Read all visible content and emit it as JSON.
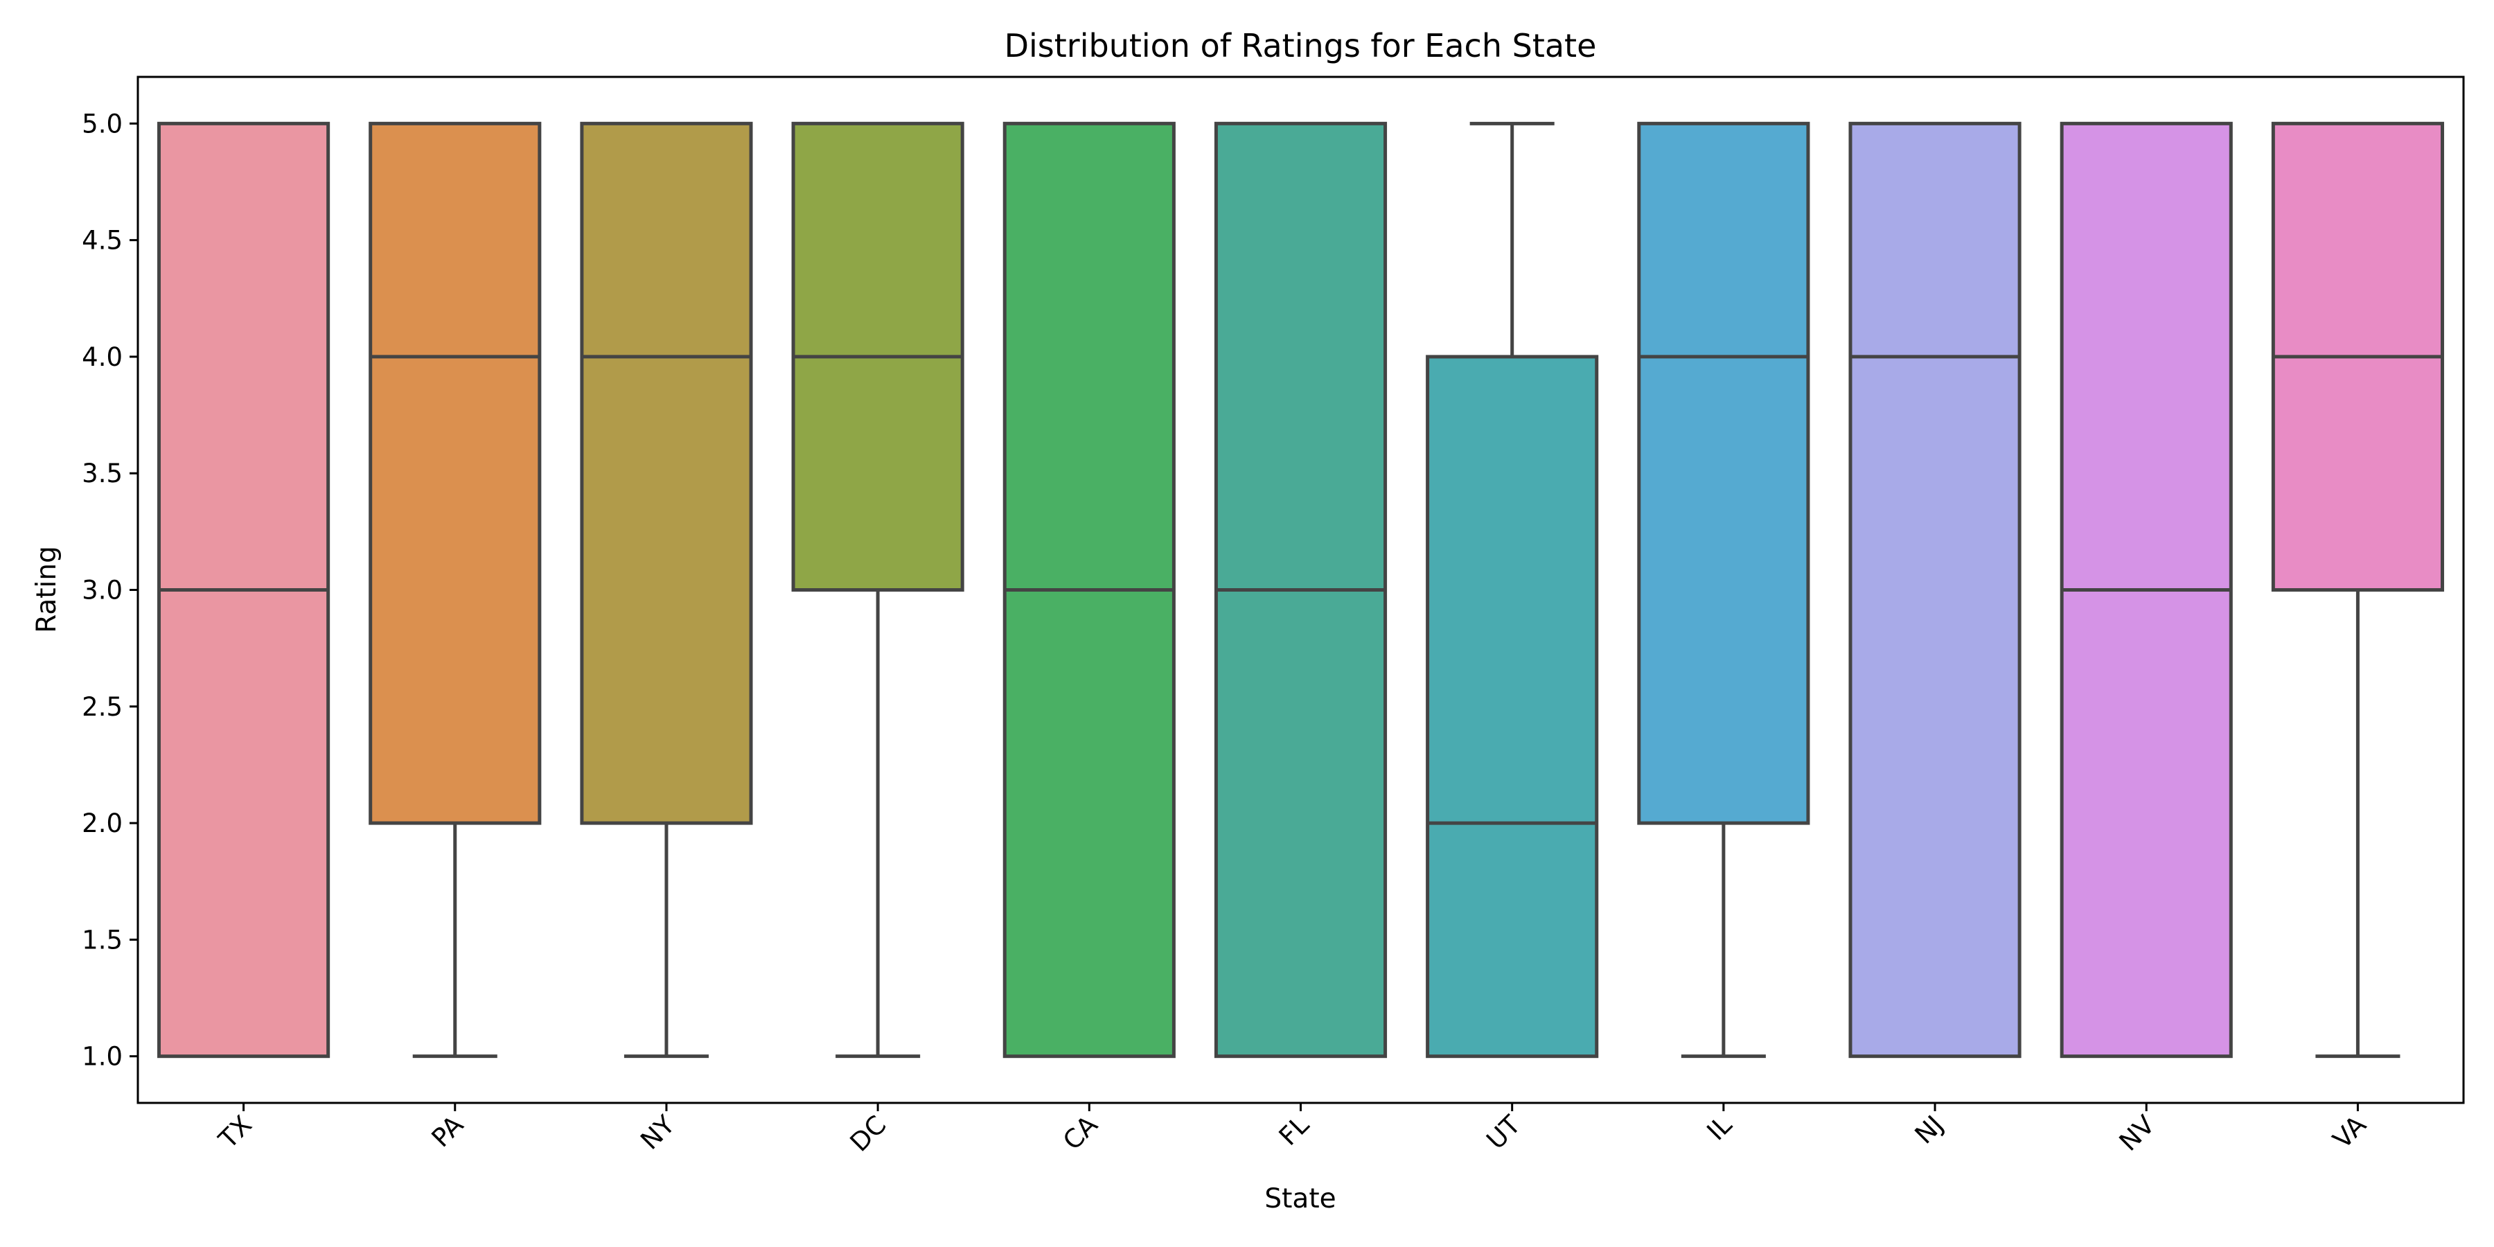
{
  "chart_data": {
    "type": "box",
    "title": "Distribution of Ratings for Each State",
    "xlabel": "State",
    "ylabel": "Rating",
    "ylim": [
      0.8,
      5.2
    ],
    "yticks": [
      "1.0",
      "1.5",
      "2.0",
      "2.5",
      "3.0",
      "3.5",
      "4.0",
      "4.5",
      "5.0"
    ],
    "grid": false,
    "legend": "none",
    "x_tick_rotation": 45,
    "categories": [
      "TX",
      "PA",
      "NY",
      "DC",
      "CA",
      "FL",
      "UT",
      "IL",
      "NJ",
      "NV",
      "VA"
    ],
    "boxes": [
      {
        "category": "TX",
        "min": 1.0,
        "q1": 1.0,
        "median": 3.0,
        "q3": 5.0,
        "max": 5.0,
        "color": "#ea96a2"
      },
      {
        "category": "PA",
        "min": 1.0,
        "q1": 2.0,
        "median": 4.0,
        "q3": 5.0,
        "max": 5.0,
        "color": "#db904f"
      },
      {
        "category": "NY",
        "min": 1.0,
        "q1": 2.0,
        "median": 4.0,
        "q3": 5.0,
        "max": 5.0,
        "color": "#b19b4a"
      },
      {
        "category": "DC",
        "min": 1.0,
        "q1": 3.0,
        "median": 4.0,
        "q3": 5.0,
        "max": 5.0,
        "color": "#8fa647"
      },
      {
        "category": "CA",
        "min": 1.0,
        "q1": 1.0,
        "median": 3.0,
        "q3": 5.0,
        "max": 5.0,
        "color": "#4ab064"
      },
      {
        "category": "FL",
        "min": 1.0,
        "q1": 1.0,
        "median": 3.0,
        "q3": 5.0,
        "max": 5.0,
        "color": "#4aaa96"
      },
      {
        "category": "UT",
        "min": 1.0,
        "q1": 1.0,
        "median": 2.0,
        "q3": 4.0,
        "max": 5.0,
        "color": "#4aabb0"
      },
      {
        "category": "IL",
        "min": 1.0,
        "q1": 2.0,
        "median": 4.0,
        "q3": 5.0,
        "max": 5.0,
        "color": "#55aad1"
      },
      {
        "category": "NJ",
        "min": 1.0,
        "q1": 1.0,
        "median": 4.0,
        "q3": 5.0,
        "max": 5.0,
        "color": "#a8aae8"
      },
      {
        "category": "NV",
        "min": 1.0,
        "q1": 1.0,
        "median": 3.0,
        "q3": 5.0,
        "max": 5.0,
        "color": "#d593e6"
      },
      {
        "category": "VA",
        "min": 1.0,
        "q1": 3.0,
        "median": 4.0,
        "q3": 5.0,
        "max": 5.0,
        "color": "#e88cc5"
      }
    ],
    "line_color": "#444444"
  }
}
